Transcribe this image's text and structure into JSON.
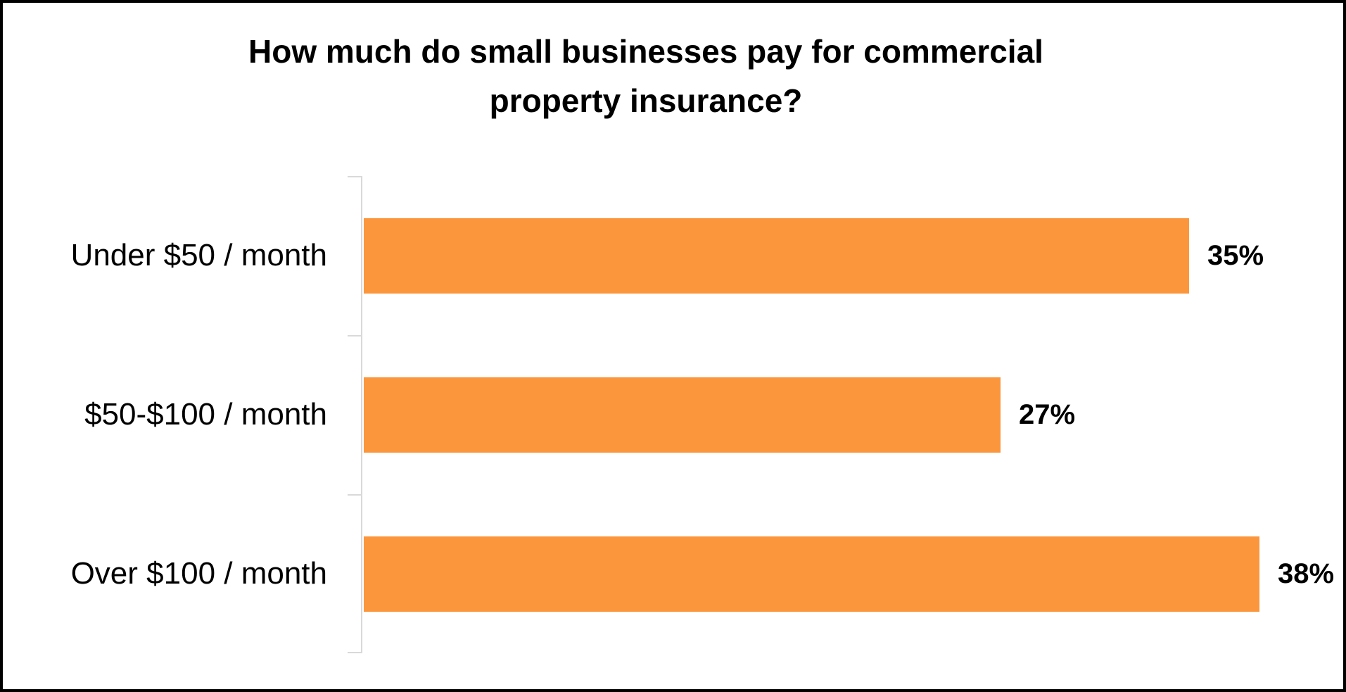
{
  "frame": {
    "border_color": "#000000",
    "background_color": "#FFFFFF"
  },
  "chart_data": {
    "type": "bar",
    "orientation": "horizontal",
    "title": "How much do small businesses pay for commercial property insurance?",
    "title_lines": [
      "How much do small businesses pay for commercial",
      "property insurance?"
    ],
    "categories": [
      "Under $50 / month",
      "$50-$100 / month",
      "Over $100 / month"
    ],
    "values": [
      35,
      27,
      38
    ],
    "data_labels": [
      "35%",
      "27%",
      "38%"
    ],
    "xlabel": "",
    "ylabel": "",
    "xlim": [
      0,
      40
    ],
    "grid": "off",
    "legend": "none",
    "bar_color": "#FB963C",
    "axis_color": "#D9D9D9",
    "text_color": "#000000"
  }
}
